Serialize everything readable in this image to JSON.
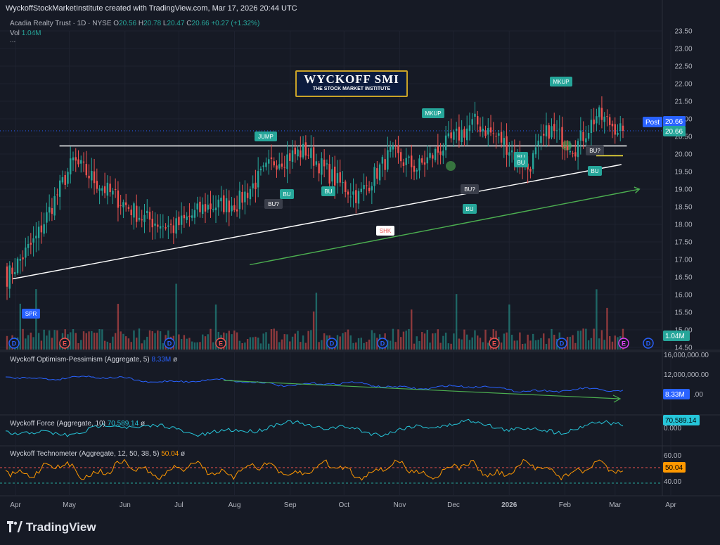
{
  "header": {
    "attribution": "WyckoffStockMarketInstitute created with TradingView.com, Mar 17, 2026 20:44 UTC",
    "symbol_line": "Acadia Realty Trust · 1D · NYSE",
    "ohlc": {
      "O": "20.56",
      "H": "20.78",
      "L": "20.47",
      "C": "20.66",
      "change": "+0.27 (+1.32%)"
    },
    "vol_label": "Vol",
    "vol_value": "1.04M",
    "more": "..."
  },
  "logo": {
    "title": "WYCKOFF SMI",
    "subtitle": "THE STOCK MARKET INSTITUTE"
  },
  "price_axis": {
    "ticks": [
      "23.50",
      "23.00",
      "22.50",
      "22.00",
      "21.50",
      "21.00",
      "20.50",
      "20.00",
      "19.50",
      "19.00",
      "18.50",
      "18.00",
      "17.50",
      "17.00",
      "16.50",
      "16.00",
      "15.50",
      "15.00",
      "14.50"
    ]
  },
  "badges": {
    "post_label": "Post",
    "post_value": "20.66",
    "last_value": "20.66",
    "volume": "1.04M"
  },
  "panes": [
    {
      "title": "Wyckoff Optimism-Pessimism (Aggregate, 5)",
      "value": "8.33M",
      "suffix": "ø",
      "axis": [
        "16,000,000.00",
        "12,000,000.00"
      ],
      "badge": "8.33M",
      "axis_tail": ".00",
      "color": "#2962ff"
    },
    {
      "title": "Wyckoff Force (Aggregate, 10)",
      "value": "70,589.14",
      "suffix": "ø",
      "axis": [
        "0.000"
      ],
      "badge": "70,589.14",
      "color": "#26c6da"
    },
    {
      "title": "Wyckoff Technometer (Aggregate, 12, 50, 38, 5)",
      "value": "50.04",
      "suffix": "ø",
      "axis": [
        "60.00",
        "40.00"
      ],
      "badge": "50.04",
      "color": "#ff9800"
    }
  ],
  "time_axis": [
    "Apr",
    "May",
    "Jun",
    "Jul",
    "Aug",
    "Sep",
    "Oct",
    "Nov",
    "Dec",
    "2026",
    "Feb",
    "Mar",
    "Apr"
  ],
  "annotations": [
    "SPR",
    "JUMP",
    "BU?",
    "BU",
    "BU",
    "SHK",
    "MKUP",
    "BU?",
    "BU",
    "BU",
    "BU",
    "MKUP",
    "BU?",
    "BU"
  ],
  "event_markers": [
    "D",
    "E",
    "D",
    "E",
    "D",
    "D",
    "E",
    "D",
    "E",
    "D",
    "D"
  ],
  "footer": "TradingView",
  "chart_data": {
    "type": "candlestick",
    "x_range": [
      "2025-04-01",
      "2026-03-17"
    ],
    "ylim": [
      14.5,
      23.5
    ],
    "last_close": 20.66,
    "segments": [
      {
        "from": 16.4,
        "to": 17.6,
        "n": 12
      },
      {
        "from": 17.6,
        "to": 19.8,
        "n": 14
      },
      {
        "from": 19.8,
        "to": 19.0,
        "n": 12
      },
      {
        "from": 19.0,
        "to": 18.2,
        "n": 14
      },
      {
        "from": 18.2,
        "to": 17.9,
        "n": 12
      },
      {
        "from": 17.9,
        "to": 18.5,
        "n": 12
      },
      {
        "from": 18.5,
        "to": 18.6,
        "n": 12
      },
      {
        "from": 18.6,
        "to": 19.8,
        "n": 14
      },
      {
        "from": 19.8,
        "to": 20.1,
        "n": 12
      },
      {
        "from": 20.1,
        "to": 19.2,
        "n": 12
      },
      {
        "from": 19.2,
        "to": 18.8,
        "n": 8
      },
      {
        "from": 18.8,
        "to": 20.0,
        "n": 12
      },
      {
        "from": 20.0,
        "to": 19.6,
        "n": 10
      },
      {
        "from": 19.6,
        "to": 20.2,
        "n": 10
      },
      {
        "from": 20.2,
        "to": 20.9,
        "n": 12
      },
      {
        "from": 20.9,
        "to": 20.4,
        "n": 10
      },
      {
        "from": 20.4,
        "to": 19.6,
        "n": 10
      },
      {
        "from": 19.6,
        "to": 20.7,
        "n": 8
      },
      {
        "from": 20.7,
        "to": 20.2,
        "n": 10
      },
      {
        "from": 20.2,
        "to": 21.1,
        "n": 8
      },
      {
        "from": 21.1,
        "to": 20.66,
        "n": 10
      }
    ],
    "colors": {
      "up": "#26a69a",
      "down": "#ef5350"
    },
    "trendlines": [
      {
        "label": "resistance",
        "from": [
          "2025-05-01",
          20.23
        ],
        "to": [
          "2026-03-13",
          20.23
        ],
        "color": "#ffffff"
      },
      {
        "label": "support",
        "from": [
          "2025-04-05",
          16.45
        ],
        "to": [
          "2026-03-10",
          19.7
        ],
        "color": "#ffffff"
      },
      {
        "label": "trend arrow",
        "from": [
          "2025-08-15",
          16.85
        ],
        "to": [
          "2026-03-20",
          19.0
        ],
        "color": "#4caf50"
      }
    ],
    "reference_levels": [
      {
        "label": "short yellow line",
        "value": 19.95,
        "color": "#ffeb3b"
      }
    ]
  }
}
